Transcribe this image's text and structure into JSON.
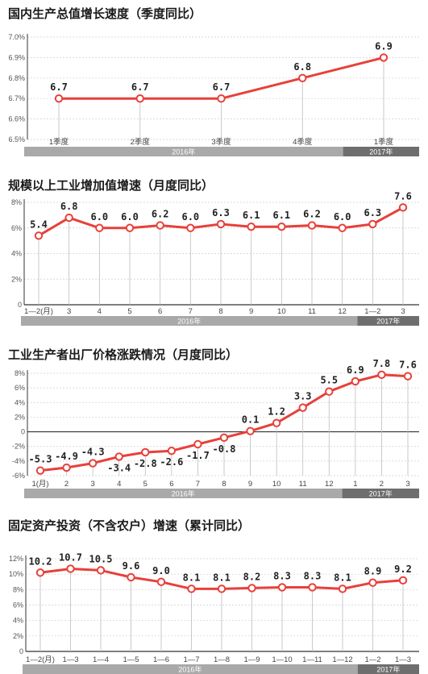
{
  "chart_data": [
    {
      "type": "line",
      "title": "国内生产总值增长速度（季度同比）",
      "categories": [
        "1季度",
        "2季度",
        "3季度",
        "4季度",
        "1季度"
      ],
      "series": [
        {
          "values": [
            6.7,
            6.7,
            6.7,
            6.8,
            6.9
          ]
        }
      ],
      "value_labels": [
        "6.7",
        "6.7",
        "6.7",
        "6.8",
        "6.9"
      ],
      "ylim": [
        6.5,
        7.0
      ],
      "yticks": [
        6.5,
        6.6,
        6.7,
        6.8,
        6.9,
        7.0
      ],
      "ytick_labels": [
        "6.5%",
        "6.6%",
        "6.7%",
        "6.8%",
        "6.9%",
        "7.0%"
      ],
      "groups": [
        {
          "label": "2016年",
          "count": 4
        },
        {
          "label": "2017年",
          "count": 1
        }
      ],
      "grid": true,
      "line_color": "#e8403a",
      "label_offsets": [
        -1,
        -1,
        -1,
        -1,
        -1
      ]
    },
    {
      "type": "line",
      "title": "规模以上工业增加值增速（月度同比）",
      "categories": [
        "1—2(月)",
        "3",
        "4",
        "5",
        "6",
        "7",
        "8",
        "9",
        "10",
        "11",
        "12",
        "1—2",
        "3"
      ],
      "series": [
        {
          "values": [
            5.4,
            6.8,
            6.0,
            6.0,
            6.2,
            6.0,
            6.3,
            6.1,
            6.1,
            6.2,
            6.0,
            6.3,
            7.6
          ]
        }
      ],
      "value_labels": [
        "5.4",
        "6.8",
        "6.0",
        "6.0",
        "6.2",
        "6.0",
        "6.3",
        "6.1",
        "6.1",
        "6.2",
        "6.0",
        "6.3",
        "7.6"
      ],
      "ylim": [
        0,
        8
      ],
      "yticks": [
        0,
        2,
        4,
        6,
        8
      ],
      "ytick_labels": [
        "0",
        "2%",
        "4%",
        "6%",
        "8%"
      ],
      "groups": [
        {
          "label": "2016年",
          "count": 11
        },
        {
          "label": "2017年",
          "count": 2
        }
      ],
      "grid": true,
      "line_color": "#e8403a",
      "label_offsets": [
        -1,
        -1,
        -1,
        -1,
        -1,
        -1,
        -1,
        -1,
        -1,
        -1,
        -1,
        -1,
        -1
      ]
    },
    {
      "type": "line",
      "title": "工业生产者出厂价格涨跌情况（月度同比）",
      "categories": [
        "1(月)",
        "2",
        "3",
        "4",
        "5",
        "6",
        "7",
        "8",
        "9",
        "10",
        "11",
        "12",
        "1",
        "2",
        "3"
      ],
      "series": [
        {
          "values": [
            -5.3,
            -4.9,
            -4.3,
            -3.4,
            -2.8,
            -2.6,
            -1.7,
            -0.8,
            0.1,
            1.2,
            3.3,
            5.5,
            6.9,
            7.8,
            7.6
          ]
        }
      ],
      "value_labels": [
        "-5.3",
        "-4.9",
        "-4.3",
        "-3.4",
        "-2.8",
        "-2.6",
        "-1.7",
        "-0.8",
        "0.1",
        "1.2",
        "3.3",
        "5.5",
        "6.9",
        "7.8",
        "7.6"
      ],
      "ylim": [
        -6,
        8
      ],
      "yticks": [
        -6,
        -4,
        -2,
        0,
        2,
        4,
        6,
        8
      ],
      "ytick_labels": [
        "-6%",
        "-4%",
        "-2%",
        "0",
        "2%",
        "4%",
        "6%",
        "8%"
      ],
      "groups": [
        {
          "label": "2016年",
          "count": 12
        },
        {
          "label": "2017年",
          "count": 3
        }
      ],
      "grid": true,
      "line_color": "#e8403a",
      "label_offsets": [
        -1,
        -1,
        -1,
        1,
        1,
        1,
        1,
        1,
        -1,
        -1,
        -1,
        -1,
        -1,
        -1,
        -1
      ]
    },
    {
      "type": "line",
      "title": "固定资产投资（不含农户）增速（累计同比）",
      "categories": [
        "1—2(月)",
        "1—3",
        "1—4",
        "1—5",
        "1—6",
        "1—7",
        "1—8",
        "1—9",
        "1—10",
        "1—11",
        "1—12",
        "1—2",
        "1—3"
      ],
      "series": [
        {
          "values": [
            10.2,
            10.7,
            10.5,
            9.6,
            9.0,
            8.1,
            8.1,
            8.2,
            8.3,
            8.3,
            8.1,
            8.9,
            9.2
          ]
        }
      ],
      "value_labels": [
        "10.2",
        "10.7",
        "10.5",
        "9.6",
        "9.0",
        "8.1",
        "8.1",
        "8.2",
        "8.3",
        "8.3",
        "8.1",
        "8.9",
        "9.2"
      ],
      "ylim": [
        0,
        12
      ],
      "yticks": [
        0,
        2,
        4,
        6,
        8,
        10,
        12
      ],
      "ytick_labels": [
        "0",
        "2%",
        "4%",
        "6%",
        "8%",
        "10%",
        "12%"
      ],
      "groups": [
        {
          "label": "2016年",
          "count": 11
        },
        {
          "label": "2017年",
          "count": 2
        }
      ],
      "grid": true,
      "line_color": "#e8403a",
      "label_offsets": [
        -1,
        -1,
        -1,
        -1,
        -1,
        -1,
        -1,
        -1,
        -1,
        -1,
        -1,
        -1,
        -1
      ]
    }
  ],
  "colors": {
    "line": "#e8403a",
    "band_2016": "#a9a9a9",
    "band_2017": "#6e6e6e",
    "grid": "#cfcfcf",
    "drop": "#bdbdbd"
  }
}
